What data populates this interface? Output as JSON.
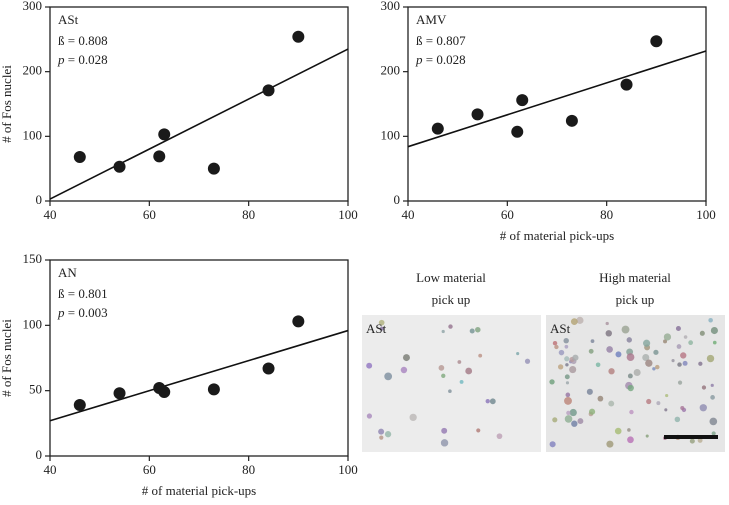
{
  "chart_data": [
    {
      "type": "scatter",
      "title": "ASt",
      "annotations": [
        "ß = 0.808",
        "p = 0.028"
      ],
      "y_label": "# of Fos nuclei",
      "x": [
        46,
        54,
        62,
        63,
        73,
        84,
        90
      ],
      "values": [
        68,
        53,
        69,
        103,
        50,
        171,
        254
      ],
      "color": "#1a1a1a",
      "fit": {
        "x": [
          40,
          100
        ],
        "y": [
          3,
          235
        ]
      },
      "xlim": [
        40,
        100
      ],
      "xticks": [
        40,
        60,
        80,
        100
      ],
      "ylim": [
        0,
        300
      ],
      "yticks": [
        0,
        100,
        200,
        300
      ]
    },
    {
      "type": "scatter",
      "title": "AMV",
      "annotations": [
        "ß = 0.807",
        "p = 0.028"
      ],
      "x_label": "# of material pick-ups",
      "x": [
        46,
        54,
        62,
        63,
        73,
        84,
        90
      ],
      "values": [
        112,
        134,
        107,
        156,
        124,
        180,
        247
      ],
      "color": "#1a1a1a",
      "fit": {
        "x": [
          40,
          100
        ],
        "y": [
          84,
          232
        ]
      },
      "xlim": [
        40,
        100
      ],
      "xticks": [
        40,
        60,
        80,
        100
      ],
      "ylim": [
        0,
        300
      ],
      "yticks": [
        0,
        100,
        200,
        300
      ]
    },
    {
      "type": "scatter",
      "title": "AN",
      "annotations": [
        "ß = 0.801",
        "p = 0.003"
      ],
      "y_label": "# of Fos nuclei",
      "x_label": "# of material pick-ups",
      "x": [
        46,
        54,
        62,
        63,
        73,
        84,
        90
      ],
      "values": [
        39,
        48,
        52,
        49,
        51,
        67,
        103
      ],
      "color": "#1a1a1a",
      "fit": {
        "x": [
          40,
          100
        ],
        "y": [
          27,
          96
        ]
      },
      "xlim": [
        40,
        100
      ],
      "xticks": [
        40,
        60,
        80,
        100
      ],
      "ylim": [
        0,
        150
      ],
      "yticks": [
        0,
        50,
        100,
        150
      ]
    }
  ],
  "micrographs": [
    {
      "header": [
        "Low material",
        "pick up"
      ],
      "label": "ASt"
    },
    {
      "header": [
        "High material",
        "pick up"
      ],
      "label": "ASt"
    }
  ]
}
